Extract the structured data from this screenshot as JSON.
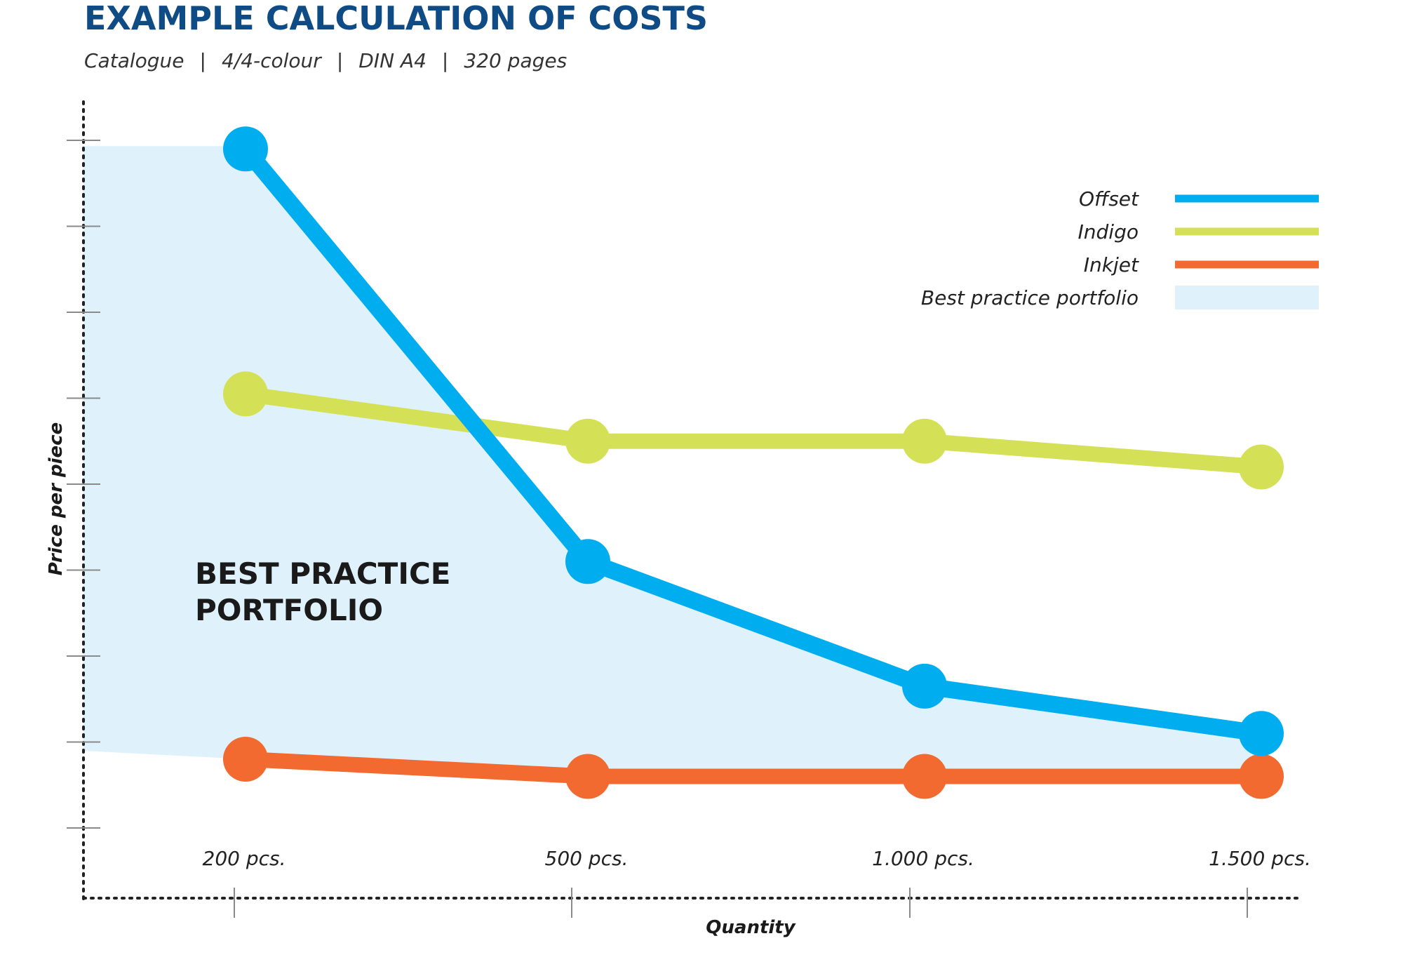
{
  "colors": {
    "title": "#0f4b84",
    "offset": "#00aeef",
    "indigo": "#d4e157",
    "inkjet": "#f26a30",
    "portfolio": "#dff2fb",
    "axis": "#222222",
    "tick": "#8a8a8a"
  },
  "chart_data": {
    "type": "line",
    "title": "EXAMPLE CALCULATION OF COSTS",
    "subtitle": "Catalogue | 4/4-colour | DIN A4 | 320 pages",
    "subtitle_parts": [
      "Catalogue",
      "4/4-colour",
      "DIN A4",
      "320 pages"
    ],
    "xlabel": "Quantity",
    "ylabel": "Price per piece",
    "categories": [
      "200 pcs.",
      "500 pcs.",
      "1.000 pcs.",
      "1.500 pcs."
    ],
    "ylim": [
      0,
      8
    ],
    "y_ticks": 9,
    "y_tick_labels_shown": false,
    "grid": false,
    "legend_position": "top-right",
    "series": [
      {
        "name": "Offset",
        "color": "#00aeef",
        "values": [
          7.9,
          3.1,
          1.65,
          1.1
        ]
      },
      {
        "name": "Indigo",
        "color": "#d4e157",
        "values": [
          5.05,
          4.5,
          4.5,
          4.2
        ]
      },
      {
        "name": "Inkjet",
        "color": "#f26a30",
        "values": [
          0.8,
          0.6,
          0.6,
          0.6
        ]
      }
    ],
    "area": {
      "name": "Best practice portfolio",
      "label_lines": [
        "BEST PRACTICE",
        "PORTFOLIO"
      ],
      "color": "#dff2fb",
      "description_basis": "lowest of series"
    }
  }
}
